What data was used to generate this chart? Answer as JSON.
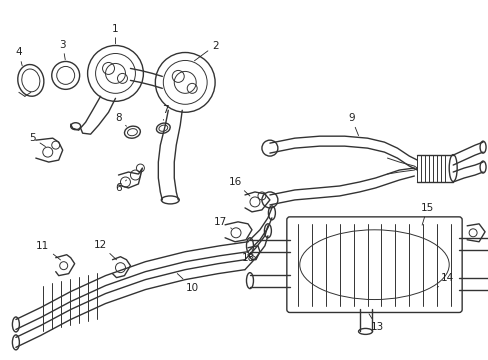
{
  "background_color": "#ffffff",
  "line_color": "#333333",
  "label_color": "#222222",
  "fig_width": 4.89,
  "fig_height": 3.6,
  "dpi": 100
}
